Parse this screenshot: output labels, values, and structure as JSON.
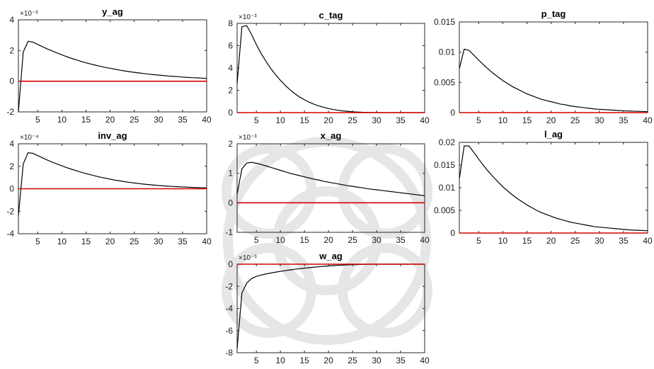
{
  "figure": {
    "line_color": "#000000",
    "zero_line_color": "#d40000",
    "watermark_color": "#e6e6e6"
  },
  "chart_data": [
    {
      "type": "line",
      "title": "y_ag",
      "multiplier_label": "×10⁻³",
      "xlim": [
        1,
        40
      ],
      "ylim": [
        -2,
        4
      ],
      "xticks": [
        5,
        10,
        15,
        20,
        25,
        30,
        35,
        40
      ],
      "yticks": [
        -2,
        0,
        2,
        4
      ],
      "ytick_labels": [
        "-2",
        "0",
        "2",
        "4"
      ],
      "grid": false,
      "x": [
        1,
        2,
        3,
        4,
        5,
        6,
        7,
        8,
        9,
        10,
        11,
        12,
        13,
        14,
        15,
        16,
        17,
        18,
        19,
        20,
        21,
        22,
        23,
        24,
        25,
        26,
        27,
        28,
        29,
        30,
        31,
        32,
        33,
        34,
        35,
        36,
        37,
        38,
        39,
        40
      ],
      "series": [
        {
          "values": [
            -2,
            1.9,
            2.6,
            2.55,
            2.4,
            2.25,
            2.1,
            1.97,
            1.84,
            1.72,
            1.6,
            1.49,
            1.39,
            1.29,
            1.2,
            1.12,
            1.04,
            0.97,
            0.9,
            0.84,
            0.78,
            0.72,
            0.67,
            0.62,
            0.58,
            0.54,
            0.5,
            0.46,
            0.43,
            0.4,
            0.37,
            0.34,
            0.32,
            0.3,
            0.27,
            0.25,
            0.23,
            0.22,
            0.2,
            0.18
          ],
          "color": "#000000"
        },
        {
          "values": [
            0,
            0,
            0,
            0,
            0,
            0,
            0,
            0,
            0,
            0,
            0,
            0,
            0,
            0,
            0,
            0,
            0,
            0,
            0,
            0,
            0,
            0,
            0,
            0,
            0,
            0,
            0,
            0,
            0,
            0,
            0,
            0,
            0,
            0,
            0,
            0,
            0,
            0,
            0,
            0
          ],
          "color": "#d40000"
        }
      ]
    },
    {
      "type": "line",
      "title": "c_tag",
      "multiplier_label": "×10⁻³",
      "xlim": [
        1,
        40
      ],
      "ylim": [
        0,
        8
      ],
      "xticks": [
        5,
        10,
        15,
        20,
        25,
        30,
        35,
        40
      ],
      "yticks": [
        0,
        2,
        4,
        6,
        8
      ],
      "ytick_labels": [
        "0",
        "2",
        "4",
        "6",
        "8"
      ],
      "grid": false,
      "x": [
        1,
        2,
        3,
        4,
        5,
        6,
        7,
        8,
        9,
        10,
        11,
        12,
        13,
        14,
        15,
        16,
        17,
        18,
        19,
        20,
        21,
        22,
        23,
        24,
        25,
        26,
        27,
        28,
        29,
        30,
        31,
        32,
        33,
        34,
        35,
        36,
        37,
        38,
        39,
        40
      ],
      "series": [
        {
          "values": [
            2.6,
            7.7,
            7.8,
            7.0,
            6.1,
            5.3,
            4.6,
            3.95,
            3.4,
            2.9,
            2.45,
            2.05,
            1.7,
            1.4,
            1.15,
            0.93,
            0.75,
            0.6,
            0.47,
            0.37,
            0.28,
            0.21,
            0.15,
            0.11,
            0.07,
            0.05,
            0.03,
            0.02,
            0.01,
            0.01,
            0,
            0,
            0,
            0,
            0,
            0,
            0,
            0,
            0,
            0
          ],
          "color": "#000000"
        },
        {
          "values": [
            0,
            0,
            0,
            0,
            0,
            0,
            0,
            0,
            0,
            0,
            0,
            0,
            0,
            0,
            0,
            0,
            0,
            0,
            0,
            0,
            0,
            0,
            0,
            0,
            0,
            0,
            0,
            0,
            0,
            0,
            0,
            0,
            0,
            0,
            0,
            0,
            0,
            0,
            0,
            0
          ],
          "color": "#d40000"
        }
      ]
    },
    {
      "type": "line",
      "title": "p_tag",
      "multiplier_label": "",
      "xlim": [
        1,
        40
      ],
      "ylim": [
        0,
        0.015
      ],
      "xticks": [
        5,
        10,
        15,
        20,
        25,
        30,
        35,
        40
      ],
      "yticks": [
        0,
        0.005,
        0.01,
        0.015
      ],
      "ytick_labels": [
        "0",
        "0.005",
        "0.01",
        "0.015"
      ],
      "grid": false,
      "x": [
        1,
        2,
        3,
        4,
        5,
        6,
        7,
        8,
        9,
        10,
        11,
        12,
        13,
        14,
        15,
        16,
        17,
        18,
        19,
        20,
        21,
        22,
        23,
        24,
        25,
        26,
        27,
        28,
        29,
        30,
        31,
        32,
        33,
        34,
        35,
        36,
        37,
        38,
        39,
        40
      ],
      "series": [
        {
          "values": [
            0.0073,
            0.0105,
            0.0103,
            0.0095,
            0.0087,
            0.0079,
            0.0072,
            0.0065,
            0.0059,
            0.0053,
            0.0048,
            0.0043,
            0.0039,
            0.0035,
            0.0031,
            0.0028,
            0.0025,
            0.0022,
            0.002,
            0.0018,
            0.0016,
            0.0014,
            0.0013,
            0.0011,
            0.001,
            0.0009,
            0.0008,
            0.0007,
            0.0006,
            0.00055,
            0.0005,
            0.00045,
            0.0004,
            0.00035,
            0.0003,
            0.00027,
            0.00024,
            0.00021,
            0.00018,
            0.00016
          ],
          "color": "#000000"
        },
        {
          "values": [
            0,
            0,
            0,
            0,
            0,
            0,
            0,
            0,
            0,
            0,
            0,
            0,
            0,
            0,
            0,
            0,
            0,
            0,
            0,
            0,
            0,
            0,
            0,
            0,
            0,
            0,
            0,
            0,
            0,
            0,
            0,
            0,
            0,
            0,
            0,
            0,
            0,
            0,
            0,
            0
          ],
          "color": "#d40000"
        }
      ]
    },
    {
      "type": "line",
      "title": "inv_ag",
      "multiplier_label": "×10⁻⁴",
      "xlim": [
        1,
        40
      ],
      "ylim": [
        -4,
        4
      ],
      "xticks": [
        5,
        10,
        15,
        20,
        25,
        30,
        35,
        40
      ],
      "yticks": [
        -4,
        -2,
        0,
        2,
        4
      ],
      "ytick_labels": [
        "-4",
        "-2",
        "0",
        "2",
        "4"
      ],
      "grid": false,
      "x": [
        1,
        2,
        3,
        4,
        5,
        6,
        7,
        8,
        9,
        10,
        11,
        12,
        13,
        14,
        15,
        16,
        17,
        18,
        19,
        20,
        21,
        22,
        23,
        24,
        25,
        26,
        27,
        28,
        29,
        30,
        31,
        32,
        33,
        34,
        35,
        36,
        37,
        38,
        39,
        40
      ],
      "series": [
        {
          "values": [
            -2.4,
            2.2,
            3.2,
            3.15,
            2.95,
            2.75,
            2.55,
            2.37,
            2.2,
            2.04,
            1.88,
            1.74,
            1.6,
            1.47,
            1.35,
            1.24,
            1.13,
            1.03,
            0.94,
            0.85,
            0.77,
            0.7,
            0.63,
            0.57,
            0.51,
            0.46,
            0.41,
            0.37,
            0.33,
            0.29,
            0.26,
            0.23,
            0.2,
            0.18,
            0.16,
            0.14,
            0.12,
            0.1,
            0.09,
            0.08
          ],
          "color": "#000000"
        },
        {
          "values": [
            0,
            0,
            0,
            0,
            0,
            0,
            0,
            0,
            0,
            0,
            0,
            0,
            0,
            0,
            0,
            0,
            0,
            0,
            0,
            0,
            0,
            0,
            0,
            0,
            0,
            0,
            0,
            0,
            0,
            0,
            0,
            0,
            0,
            0,
            0,
            0,
            0,
            0,
            0,
            0
          ],
          "color": "#d40000"
        }
      ]
    },
    {
      "type": "line",
      "title": "x_ag",
      "multiplier_label": "×10⁻³",
      "xlim": [
        1,
        40
      ],
      "ylim": [
        -1,
        2
      ],
      "xticks": [
        5,
        10,
        15,
        20,
        25,
        30,
        35,
        40
      ],
      "yticks": [
        -1,
        0,
        1,
        2
      ],
      "ytick_labels": [
        "-1",
        "0",
        "1",
        "2"
      ],
      "grid": false,
      "x": [
        1,
        2,
        3,
        4,
        5,
        6,
        7,
        8,
        9,
        10,
        11,
        12,
        13,
        14,
        15,
        16,
        17,
        18,
        19,
        20,
        21,
        22,
        23,
        24,
        25,
        26,
        27,
        28,
        29,
        30,
        31,
        32,
        33,
        34,
        35,
        36,
        37,
        38,
        39,
        40
      ],
      "series": [
        {
          "values": [
            0.3,
            1.15,
            1.35,
            1.37,
            1.34,
            1.3,
            1.25,
            1.2,
            1.15,
            1.1,
            1.05,
            1.0,
            0.96,
            0.92,
            0.88,
            0.84,
            0.8,
            0.77,
            0.73,
            0.7,
            0.67,
            0.64,
            0.61,
            0.58,
            0.56,
            0.53,
            0.51,
            0.48,
            0.46,
            0.44,
            0.42,
            0.4,
            0.38,
            0.36,
            0.34,
            0.32,
            0.3,
            0.28,
            0.26,
            0.24
          ],
          "color": "#000000"
        },
        {
          "values": [
            0,
            0,
            0,
            0,
            0,
            0,
            0,
            0,
            0,
            0,
            0,
            0,
            0,
            0,
            0,
            0,
            0,
            0,
            0,
            0,
            0,
            0,
            0,
            0,
            0,
            0,
            0,
            0,
            0,
            0,
            0,
            0,
            0,
            0,
            0,
            0,
            0,
            0,
            0,
            0
          ],
          "color": "#d40000"
        }
      ]
    },
    {
      "type": "line",
      "title": "l_ag",
      "multiplier_label": "",
      "xlim": [
        1,
        40
      ],
      "ylim": [
        0,
        0.02
      ],
      "xticks": [
        5,
        10,
        15,
        20,
        25,
        30,
        35,
        40
      ],
      "yticks": [
        0,
        0.005,
        0.01,
        0.015,
        0.02
      ],
      "ytick_labels": [
        "0",
        "0.005",
        "0.01",
        "0.015",
        "0.02"
      ],
      "grid": false,
      "x": [
        1,
        2,
        3,
        4,
        5,
        6,
        7,
        8,
        9,
        10,
        11,
        12,
        13,
        14,
        15,
        16,
        17,
        18,
        19,
        20,
        21,
        22,
        23,
        24,
        25,
        26,
        27,
        28,
        29,
        30,
        31,
        32,
        33,
        34,
        35,
        36,
        37,
        38,
        39,
        40
      ],
      "series": [
        {
          "values": [
            0.012,
            0.0192,
            0.0192,
            0.0178,
            0.0163,
            0.0149,
            0.0136,
            0.0124,
            0.0113,
            0.0102,
            0.0093,
            0.0084,
            0.0076,
            0.0069,
            0.0062,
            0.0056,
            0.005,
            0.0045,
            0.0041,
            0.0037,
            0.0033,
            0.003,
            0.0027,
            0.0024,
            0.0022,
            0.002,
            0.0018,
            0.0016,
            0.0014,
            0.0013,
            0.0012,
            0.0011,
            0.001,
            0.0009,
            0.0008,
            0.0007,
            0.00065,
            0.0006,
            0.00055,
            0.0005
          ],
          "color": "#000000"
        },
        {
          "values": [
            0,
            0,
            0,
            0,
            0,
            0,
            0,
            0,
            0,
            0,
            0,
            0,
            0,
            0,
            0,
            0,
            0,
            0,
            0,
            0,
            0,
            0,
            0,
            0,
            0,
            0,
            0,
            0,
            0,
            0,
            0,
            0,
            0,
            0,
            0,
            0,
            0,
            0,
            0,
            0
          ],
          "color": "#d40000"
        }
      ]
    },
    {
      "type": "line",
      "title": "w_ag",
      "multiplier_label": "×10⁻³",
      "xlim": [
        1,
        40
      ],
      "ylim": [
        -8,
        0
      ],
      "xticks": [
        5,
        10,
        15,
        20,
        25,
        30,
        35,
        40
      ],
      "yticks": [
        -8,
        -6,
        -4,
        -2,
        0
      ],
      "ytick_labels": [
        "-8",
        "-6",
        "-4",
        "-2",
        "0"
      ],
      "grid": false,
      "x": [
        1,
        2,
        3,
        4,
        5,
        6,
        7,
        8,
        9,
        10,
        11,
        12,
        13,
        14,
        15,
        16,
        17,
        18,
        19,
        20,
        21,
        22,
        23,
        24,
        25,
        26,
        27,
        28,
        29,
        30,
        31,
        32,
        33,
        34,
        35,
        36,
        37,
        38,
        39,
        40
      ],
      "series": [
        {
          "values": [
            -7.6,
            -2.6,
            -1.7,
            -1.3,
            -1.1,
            -0.98,
            -0.88,
            -0.8,
            -0.72,
            -0.65,
            -0.58,
            -0.52,
            -0.46,
            -0.41,
            -0.36,
            -0.31,
            -0.27,
            -0.23,
            -0.19,
            -0.16,
            -0.13,
            -0.1,
            -0.08,
            -0.06,
            -0.04,
            -0.03,
            -0.02,
            -0.01,
            0,
            0,
            0,
            0,
            0,
            0,
            0,
            0,
            0,
            0,
            0,
            0
          ],
          "color": "#000000"
        },
        {
          "values": [
            0,
            0,
            0,
            0,
            0,
            0,
            0,
            0,
            0,
            0,
            0,
            0,
            0,
            0,
            0,
            0,
            0,
            0,
            0,
            0,
            0,
            0,
            0,
            0,
            0,
            0,
            0,
            0,
            0,
            0,
            0,
            0,
            0,
            0,
            0,
            0,
            0,
            0,
            0,
            0
          ],
          "color": "#d40000"
        }
      ]
    }
  ]
}
